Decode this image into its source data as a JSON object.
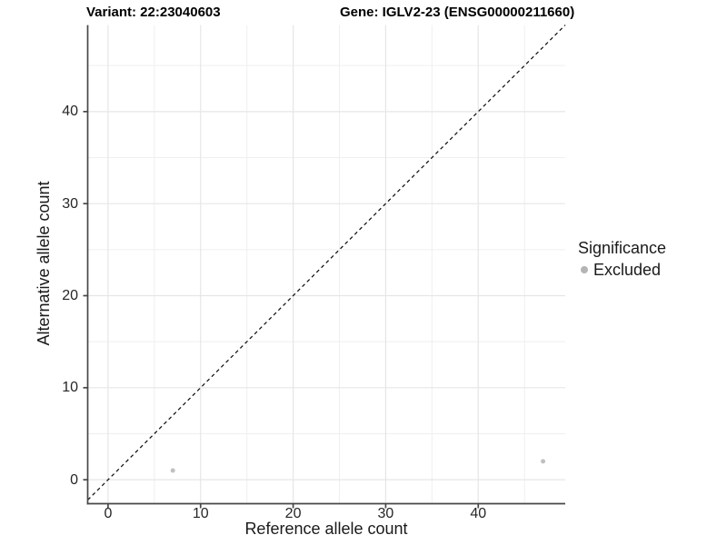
{
  "chart_data": {
    "type": "scatter",
    "title_variant": "Variant: 22:23040603",
    "title_gene": "Gene: IGLV2-23 (ENSG00000211660)",
    "xlabel": "Reference allele count",
    "ylabel": "Alternative allele count",
    "xlim": [
      -2.2,
      49.4
    ],
    "ylim": [
      -2.6,
      49.4
    ],
    "x_ticks": [
      0,
      10,
      20,
      30,
      40
    ],
    "y_ticks": [
      0,
      10,
      20,
      30,
      40
    ],
    "x_minor_ticks": [
      5,
      15,
      25,
      35,
      45
    ],
    "y_minor_ticks": [
      5,
      15,
      25,
      35,
      45
    ],
    "grid": "major+minor",
    "identity_line": {
      "style": "dashed",
      "slope": 1,
      "intercept": 0
    },
    "series": [
      {
        "name": "Excluded",
        "points": [
          {
            "x": 7,
            "y": 1
          },
          {
            "x": 47,
            "y": 2
          }
        ]
      }
    ],
    "legend": {
      "title": "Significance",
      "position": "right",
      "items": [
        {
          "label": "Excluded",
          "color": "#b4b4b4"
        }
      ]
    }
  },
  "colors": {
    "point": "#c0c0c0",
    "legend_point": "#b4b4b4",
    "grid_major": "#e6e6e6",
    "grid_minor": "#efefef",
    "axis_line": "#474747",
    "identity_line": "#111111",
    "text": "#1a1a1a",
    "title": "#000000",
    "background": "#ffffff"
  }
}
